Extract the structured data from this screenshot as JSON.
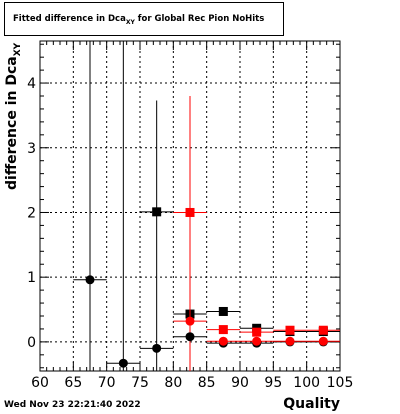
{
  "title": {
    "text": "Fitted difference in Dca",
    "subscript": "XY",
    "suffix": " for Global Rec Pion NoHits"
  },
  "timestamp": "Wed Nov 23 22:21:40 2022",
  "colors": {
    "black_series": "#000000",
    "red_series": "#ff0000",
    "grid": "#000000"
  },
  "chart_data": {
    "type": "scatter",
    "xlabel": "Quality",
    "ylabel": "difference in Dca",
    "ylabel_subscript": "XY",
    "xlim": [
      60,
      105
    ],
    "ylim": [
      -0.45,
      4.65
    ],
    "x_ticks": [
      60,
      65,
      70,
      75,
      80,
      85,
      90,
      95,
      100,
      105
    ],
    "y_ticks": [
      0,
      1,
      2,
      3,
      4
    ],
    "grid": true,
    "series": [
      {
        "color": "black",
        "marker": "square",
        "points": [
          {
            "x": 77.5,
            "y": 2.01,
            "xerr": 2.5,
            "ylow": 2.01,
            "yhigh": 2.01
          },
          {
            "x": 82.5,
            "y": 0.43,
            "xerr": 2.5,
            "ylow": 0.43,
            "yhigh": 0.43
          },
          {
            "x": 87.5,
            "y": 0.47,
            "xerr": 2.5,
            "ylow": 0.47,
            "yhigh": 0.47
          },
          {
            "x": 92.5,
            "y": 0.21,
            "xerr": 2.5,
            "ylow": 0.21,
            "yhigh": 0.21
          },
          {
            "x": 97.5,
            "y": 0.16,
            "xerr": 2.5,
            "ylow": 0.16,
            "yhigh": 0.16
          },
          {
            "x": 102.5,
            "y": 0.16,
            "xerr": 2.5,
            "ylow": 0.16,
            "yhigh": 0.16
          }
        ]
      },
      {
        "color": "red",
        "marker": "square",
        "points": [
          {
            "x": 82.5,
            "y": 2.0,
            "xerr": 2.5,
            "ylow": -0.45,
            "yhigh": 3.8
          },
          {
            "x": 87.5,
            "y": 0.19,
            "xerr": 2.5,
            "ylow": 0.19,
            "yhigh": 0.19
          },
          {
            "x": 92.5,
            "y": 0.15,
            "xerr": 2.5,
            "ylow": 0.15,
            "yhigh": 0.15
          },
          {
            "x": 97.5,
            "y": 0.18,
            "xerr": 2.5,
            "ylow": 0.18,
            "yhigh": 0.18
          },
          {
            "x": 102.5,
            "y": 0.18,
            "xerr": 2.5,
            "ylow": 0.18,
            "yhigh": 0.18
          }
        ]
      },
      {
        "color": "black",
        "marker": "circle",
        "points": [
          {
            "x": 67.5,
            "y": 0.96,
            "xerr": 2.5,
            "ylow": -0.45,
            "yhigh": 4.65
          },
          {
            "x": 72.5,
            "y": -0.33,
            "xerr": 2.5,
            "ylow": -0.45,
            "yhigh": 4.65
          },
          {
            "x": 77.5,
            "y": -0.1,
            "xerr": 2.5,
            "ylow": -0.45,
            "yhigh": 3.73
          },
          {
            "x": 82.5,
            "y": 0.08,
            "xerr": 2.5,
            "ylow": 0.08,
            "yhigh": 0.08
          },
          {
            "x": 87.5,
            "y": -0.02,
            "xerr": 2.5,
            "ylow": -0.02,
            "yhigh": 0.02
          },
          {
            "x": 92.5,
            "y": -0.02,
            "xerr": 2.5,
            "ylow": -0.02,
            "yhigh": -0.02
          },
          {
            "x": 97.5,
            "y": 0.0,
            "xerr": 2.5,
            "ylow": 0.0,
            "yhigh": 0.0
          },
          {
            "x": 102.5,
            "y": 0.0,
            "xerr": 2.5,
            "ylow": 0.0,
            "yhigh": 0.0
          }
        ]
      },
      {
        "color": "red",
        "marker": "circle",
        "points": [
          {
            "x": 82.5,
            "y": 0.32,
            "xerr": 2.5,
            "ylow": 0.32,
            "yhigh": 0.32
          },
          {
            "x": 87.5,
            "y": 0.01,
            "xerr": 2.5,
            "ylow": 0.01,
            "yhigh": 0.01
          },
          {
            "x": 92.5,
            "y": 0.01,
            "xerr": 2.5,
            "ylow": 0.01,
            "yhigh": 0.01
          },
          {
            "x": 97.5,
            "y": 0.01,
            "xerr": 2.5,
            "ylow": 0.01,
            "yhigh": 0.01
          },
          {
            "x": 102.5,
            "y": 0.01,
            "xerr": 2.5,
            "ylow": 0.01,
            "yhigh": 0.01
          }
        ]
      }
    ]
  }
}
